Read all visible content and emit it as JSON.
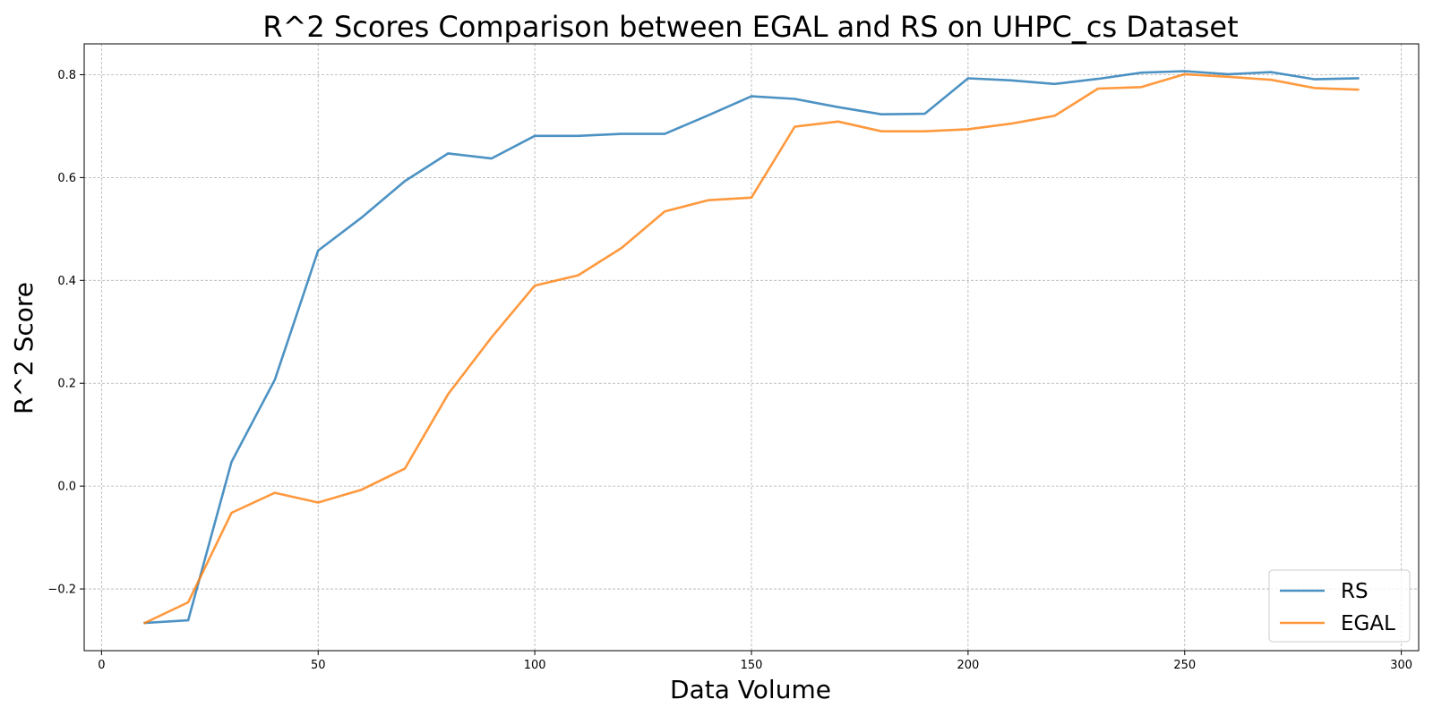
{
  "chart_data": {
    "type": "line",
    "title": "R^2 Scores Comparison between EGAL and RS on UHPC_cs Dataset",
    "xlabel": "Data Volume",
    "ylabel": "R^2 Score",
    "xlim": [
      -4,
      304
    ],
    "ylim": [
      -0.32,
      0.86
    ],
    "xticks": [
      0,
      50,
      100,
      150,
      200,
      250,
      300
    ],
    "yticks": [
      -0.2,
      0.0,
      0.2,
      0.4,
      0.6,
      0.8
    ],
    "ytick_labels": [
      "−0.2",
      "0.0",
      "0.2",
      "0.4",
      "0.6",
      "0.8"
    ],
    "grid": true,
    "legend_position": "lower right",
    "x": [
      10,
      20,
      30,
      40,
      50,
      60,
      70,
      80,
      90,
      100,
      110,
      120,
      130,
      140,
      150,
      160,
      170,
      180,
      190,
      200,
      210,
      220,
      230,
      240,
      250,
      260,
      270,
      280,
      290
    ],
    "series": [
      {
        "name": "RS",
        "color": "#1f77b4",
        "values": [
          -0.266,
          -0.261,
          0.047,
          0.207,
          0.458,
          0.522,
          0.593,
          0.647,
          0.637,
          0.681,
          0.681,
          0.685,
          0.685,
          0.721,
          0.758,
          0.753,
          0.737,
          0.723,
          0.724,
          0.793,
          0.789,
          0.782,
          0.792,
          0.804,
          0.807,
          0.801,
          0.805,
          0.791,
          0.793
        ]
      },
      {
        "name": "EGAL",
        "color": "#ff7f0e",
        "values": [
          -0.266,
          -0.226,
          -0.052,
          -0.013,
          -0.032,
          -0.007,
          0.034,
          0.179,
          0.289,
          0.39,
          0.41,
          0.463,
          0.534,
          0.556,
          0.561,
          0.699,
          0.709,
          0.69,
          0.69,
          0.694,
          0.705,
          0.72,
          0.773,
          0.776,
          0.801,
          0.796,
          0.79,
          0.774,
          0.771
        ]
      }
    ]
  }
}
